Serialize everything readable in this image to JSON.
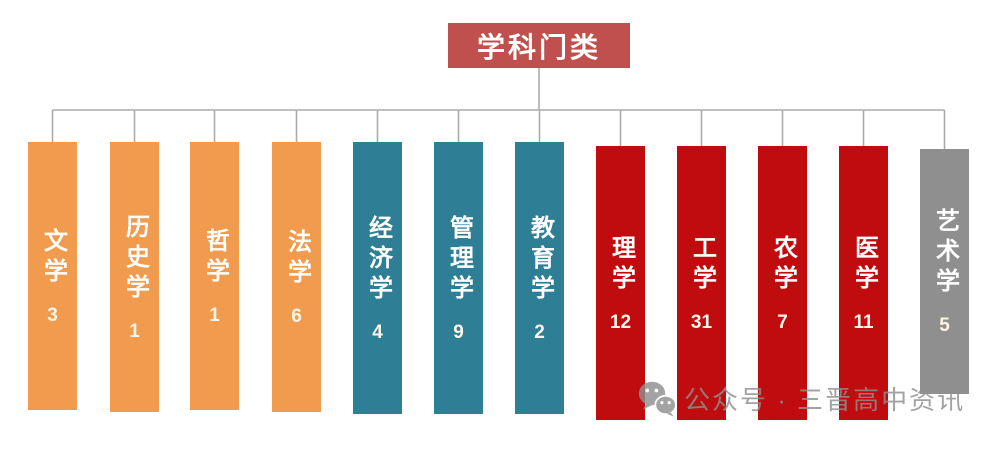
{
  "title": "学科门类",
  "watermark": {
    "text": "公众号 · 三晋高中资讯",
    "icon": "wechat-icon"
  },
  "colors": {
    "title_bg": "#C0504D",
    "orange": "#F09B4D",
    "teal": "#2E7E96",
    "red": "#C00B0F",
    "gray": "#8F8F8F",
    "connector": "#ABABAB",
    "watermark_gray": "#8f8f8f"
  },
  "columns": [
    {
      "label": "文学",
      "value": "3",
      "color": "#F09B4D"
    },
    {
      "label": "历史学",
      "value": "1",
      "color": "#F09B4D"
    },
    {
      "label": "哲学",
      "value": "1",
      "color": "#F09B4D"
    },
    {
      "label": "法学",
      "value": "6",
      "color": "#F09B4D"
    },
    {
      "label": "经济学",
      "value": "4",
      "color": "#2E7E96"
    },
    {
      "label": "管理学",
      "value": "9",
      "color": "#2E7E96"
    },
    {
      "label": "教育学",
      "value": "2",
      "color": "#2E7E96"
    },
    {
      "label": "理学",
      "value": "12",
      "color": "#C00B0F"
    },
    {
      "label": "工学",
      "value": "31",
      "color": "#C00B0F"
    },
    {
      "label": "农学",
      "value": "7",
      "color": "#C00B0F"
    },
    {
      "label": "医学",
      "value": "11",
      "color": "#C00B0F"
    },
    {
      "label": "艺术学",
      "value": "5",
      "color": "#8F8F8F"
    }
  ]
}
